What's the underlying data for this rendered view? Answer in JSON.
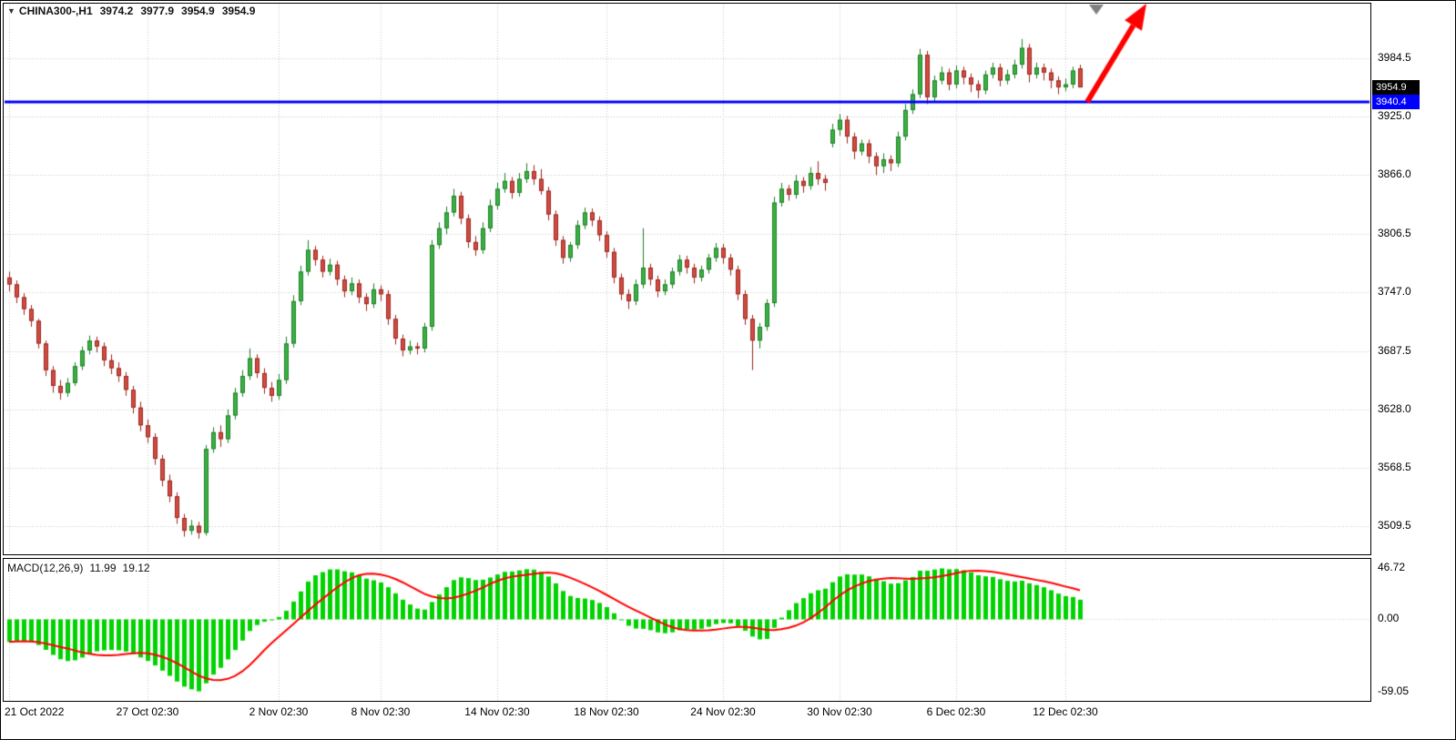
{
  "header": {
    "symbol": "CHINA300-,H1",
    "open": "3974.2",
    "high": "3977.9",
    "low": "3954.9",
    "close": "3954.9"
  },
  "price_tag": {
    "text": "3954.9",
    "value": 3954.9,
    "bg": "#000000",
    "fg": "#ffffff"
  },
  "hline_tag": {
    "text": "3940.4",
    "value": 3940.4,
    "bg": "#0000ff",
    "fg": "#ffffff"
  },
  "macd_panel": {
    "label": "MACD(12,26,9)",
    "main_value": "11.99",
    "signal_value": "19.12",
    "axis_labels": [
      "46.72",
      "0.00",
      "-59.05"
    ]
  },
  "chart_data": {
    "type": "candlestick",
    "symbol": "CHINA300-",
    "timeframe": "H1",
    "ylim": [
      3482,
      4039
    ],
    "grid": true,
    "y_ticks": [
      {
        "v": 3984.5,
        "label": "3984.5"
      },
      {
        "v": 3925.0,
        "label": "3925.0"
      },
      {
        "v": 3866.0,
        "label": "3866.0"
      },
      {
        "v": 3806.5,
        "label": "3806.5"
      },
      {
        "v": 3747.0,
        "label": "3747.0"
      },
      {
        "v": 3687.5,
        "label": "3687.5"
      },
      {
        "v": 3628.0,
        "label": "3628.0"
      },
      {
        "v": 3568.5,
        "label": "3568.5"
      },
      {
        "v": 3509.5,
        "label": "3509.5"
      }
    ],
    "x_ticks": [
      {
        "i": 0,
        "label": "21 Oct 2022"
      },
      {
        "i": 19,
        "label": "27 Oct 02:30"
      },
      {
        "i": 37,
        "label": "2 Nov 02:30"
      },
      {
        "i": 51,
        "label": "8 Nov 02:30"
      },
      {
        "i": 67,
        "label": "14 Nov 02:30"
      },
      {
        "i": 82,
        "label": "18 Nov 02:30"
      },
      {
        "i": 98,
        "label": "24 Nov 02:30"
      },
      {
        "i": 114,
        "label": "30 Nov 02:30"
      },
      {
        "i": 130,
        "label": "6 Dec 02:30"
      },
      {
        "i": 145,
        "label": "12 Dec 02:30"
      }
    ],
    "colors": {
      "up_fill": "#3cb044",
      "up_edge": "#1e7e26",
      "down_fill": "#d14b41",
      "down_edge": "#99271f",
      "grid": "#c4c4c4",
      "hline": "#0000ff",
      "histogram": "#00d300",
      "signal": "#ff0000",
      "arrow": "#ff0000",
      "marker": "#808080"
    },
    "indicator": {
      "name": "MACD",
      "fast": 12,
      "slow": 26,
      "signal": 9,
      "display_main": 11.99,
      "display_signal": 19.12
    },
    "annotations": [
      {
        "type": "hline",
        "value": 3940.4,
        "label": "3940.4",
        "width": 3
      },
      {
        "type": "arrow",
        "from": [
          1193,
          111
        ],
        "to": [
          1258,
          3
        ],
        "width": 6
      },
      {
        "type": "triangle-marker",
        "x": 1203,
        "y": 4,
        "size": 16
      }
    ],
    "candles": [
      [
        3762,
        3768,
        3748,
        3755
      ],
      [
        3755,
        3759,
        3736,
        3742
      ],
      [
        3742,
        3746,
        3724,
        3730
      ],
      [
        3730,
        3734,
        3712,
        3718
      ],
      [
        3718,
        3720,
        3690,
        3695
      ],
      [
        3695,
        3698,
        3662,
        3668
      ],
      [
        3668,
        3672,
        3645,
        3652
      ],
      [
        3652,
        3658,
        3638,
        3645
      ],
      [
        3645,
        3660,
        3641,
        3655
      ],
      [
        3655,
        3676,
        3652,
        3672
      ],
      [
        3672,
        3692,
        3668,
        3688
      ],
      [
        3688,
        3703,
        3684,
        3698
      ],
      [
        3698,
        3702,
        3686,
        3692
      ],
      [
        3692,
        3696,
        3672,
        3678
      ],
      [
        3678,
        3684,
        3664,
        3670
      ],
      [
        3670,
        3676,
        3656,
        3662
      ],
      [
        3662,
        3666,
        3642,
        3648
      ],
      [
        3648,
        3652,
        3624,
        3630
      ],
      [
        3630,
        3636,
        3606,
        3612
      ],
      [
        3612,
        3618,
        3594,
        3600
      ],
      [
        3600,
        3604,
        3572,
        3578
      ],
      [
        3578,
        3582,
        3550,
        3556
      ],
      [
        3556,
        3562,
        3534,
        3540
      ],
      [
        3540,
        3544,
        3512,
        3518
      ],
      [
        3518,
        3522,
        3499,
        3505
      ],
      [
        3505,
        3516,
        3501,
        3510
      ],
      [
        3510,
        3514,
        3497,
        3503
      ],
      [
        3503,
        3592,
        3500,
        3588
      ],
      [
        3588,
        3610,
        3584,
        3605
      ],
      [
        3605,
        3612,
        3590,
        3598
      ],
      [
        3598,
        3628,
        3594,
        3622
      ],
      [
        3622,
        3650,
        3618,
        3645
      ],
      [
        3645,
        3668,
        3641,
        3662
      ],
      [
        3662,
        3690,
        3658,
        3680
      ],
      [
        3680,
        3684,
        3660,
        3665
      ],
      [
        3665,
        3670,
        3644,
        3650
      ],
      [
        3650,
        3656,
        3636,
        3642
      ],
      [
        3642,
        3664,
        3638,
        3658
      ],
      [
        3658,
        3702,
        3654,
        3695
      ],
      [
        3695,
        3744,
        3691,
        3738
      ],
      [
        3738,
        3774,
        3734,
        3768
      ],
      [
        3768,
        3800,
        3764,
        3790
      ],
      [
        3790,
        3794,
        3774,
        3780
      ],
      [
        3780,
        3784,
        3762,
        3768
      ],
      [
        3768,
        3781,
        3764,
        3775
      ],
      [
        3775,
        3779,
        3754,
        3760
      ],
      [
        3760,
        3764,
        3742,
        3748
      ],
      [
        3748,
        3762,
        3744,
        3756
      ],
      [
        3756,
        3760,
        3736,
        3742
      ],
      [
        3742,
        3746,
        3728,
        3735
      ],
      [
        3735,
        3756,
        3731,
        3750
      ],
      [
        3750,
        3754,
        3738,
        3745
      ],
      [
        3745,
        3749,
        3714,
        3720
      ],
      [
        3720,
        3724,
        3694,
        3700
      ],
      [
        3700,
        3704,
        3682,
        3688
      ],
      [
        3688,
        3698,
        3684,
        3692
      ],
      [
        3692,
        3696,
        3684,
        3690
      ],
      [
        3690,
        3716,
        3686,
        3712
      ],
      [
        3712,
        3800,
        3708,
        3795
      ],
      [
        3795,
        3818,
        3791,
        3812
      ],
      [
        3812,
        3834,
        3806,
        3828
      ],
      [
        3828,
        3852,
        3824,
        3845
      ],
      [
        3845,
        3849,
        3816,
        3822
      ],
      [
        3822,
        3826,
        3792,
        3798
      ],
      [
        3798,
        3804,
        3784,
        3790
      ],
      [
        3790,
        3818,
        3786,
        3812
      ],
      [
        3812,
        3841,
        3808,
        3835
      ],
      [
        3835,
        3858,
        3831,
        3852
      ],
      [
        3852,
        3868,
        3848,
        3860
      ],
      [
        3860,
        3864,
        3842,
        3848
      ],
      [
        3848,
        3868,
        3844,
        3862
      ],
      [
        3862,
        3878,
        3858,
        3870
      ],
      [
        3870,
        3876,
        3856,
        3862
      ],
      [
        3862,
        3872,
        3846,
        3850
      ],
      [
        3850,
        3854,
        3820,
        3826
      ],
      [
        3826,
        3830,
        3794,
        3800
      ],
      [
        3800,
        3804,
        3776,
        3782
      ],
      [
        3782,
        3798,
        3778,
        3795
      ],
      [
        3795,
        3820,
        3791,
        3815
      ],
      [
        3815,
        3833,
        3811,
        3828
      ],
      [
        3828,
        3832,
        3814,
        3820
      ],
      [
        3820,
        3824,
        3799,
        3805
      ],
      [
        3805,
        3809,
        3782,
        3788
      ],
      [
        3788,
        3792,
        3756,
        3762
      ],
      [
        3762,
        3766,
        3739,
        3745
      ],
      [
        3745,
        3750,
        3730,
        3738
      ],
      [
        3738,
        3760,
        3734,
        3755
      ],
      [
        3755,
        3812,
        3751,
        3772
      ],
      [
        3772,
        3776,
        3754,
        3760
      ],
      [
        3760,
        3764,
        3742,
        3748
      ],
      [
        3748,
        3760,
        3744,
        3755
      ],
      [
        3755,
        3772,
        3751,
        3768
      ],
      [
        3768,
        3785,
        3764,
        3780
      ],
      [
        3780,
        3784,
        3766,
        3772
      ],
      [
        3772,
        3776,
        3756,
        3762
      ],
      [
        3762,
        3774,
        3758,
        3770
      ],
      [
        3770,
        3786,
        3766,
        3782
      ],
      [
        3782,
        3797,
        3778,
        3792
      ],
      [
        3792,
        3796,
        3776,
        3782
      ],
      [
        3782,
        3786,
        3764,
        3770
      ],
      [
        3770,
        3774,
        3739,
        3745
      ],
      [
        3745,
        3749,
        3714,
        3720
      ],
      [
        3720,
        3724,
        3668,
        3698
      ],
      [
        3698,
        3716,
        3690,
        3712
      ],
      [
        3712,
        3740,
        3708,
        3736
      ],
      [
        3736,
        3844,
        3732,
        3838
      ],
      [
        3838,
        3858,
        3834,
        3852
      ],
      [
        3852,
        3856,
        3840,
        3846
      ],
      [
        3846,
        3866,
        3842,
        3860
      ],
      [
        3860,
        3864,
        3848,
        3855
      ],
      [
        3855,
        3874,
        3851,
        3868
      ],
      [
        3868,
        3880,
        3856,
        3862
      ],
      [
        3862,
        3866,
        3850,
        3858
      ],
      [
        3898,
        3918,
        3894,
        3912
      ],
      [
        3912,
        3928,
        3906,
        3922
      ],
      [
        3922,
        3926,
        3898,
        3905
      ],
      [
        3905,
        3909,
        3882,
        3890
      ],
      [
        3890,
        3902,
        3886,
        3898
      ],
      [
        3898,
        3902,
        3878,
        3885
      ],
      [
        3885,
        3889,
        3866,
        3875
      ],
      [
        3875,
        3888,
        3868,
        3882
      ],
      [
        3882,
        3886,
        3870,
        3878
      ],
      [
        3878,
        3910,
        3874,
        3905
      ],
      [
        3905,
        3938,
        3901,
        3932
      ],
      [
        3932,
        3953,
        3928,
        3948
      ],
      [
        3948,
        3994,
        3944,
        3988
      ],
      [
        3988,
        3992,
        3938,
        3945
      ],
      [
        3945,
        3967,
        3941,
        3962
      ],
      [
        3962,
        3976,
        3958,
        3970
      ],
      [
        3970,
        3974,
        3952,
        3958
      ],
      [
        3958,
        3977,
        3954,
        3972
      ],
      [
        3972,
        3976,
        3958,
        3965
      ],
      [
        3965,
        3969,
        3950,
        3958
      ],
      [
        3958,
        3962,
        3944,
        3952
      ],
      [
        3952,
        3972,
        3948,
        3968
      ],
      [
        3968,
        3980,
        3964,
        3975
      ],
      [
        3975,
        3979,
        3956,
        3962
      ],
      [
        3962,
        3973,
        3958,
        3968
      ],
      [
        3968,
        3983,
        3964,
        3978
      ],
      [
        3978,
        4004,
        3974,
        3995
      ],
      [
        3995,
        3999,
        3960,
        3968
      ],
      [
        3968,
        3980,
        3964,
        3975
      ],
      [
        3975,
        3979,
        3962,
        3970
      ],
      [
        3970,
        3974,
        3954,
        3962
      ],
      [
        3962,
        3966,
        3948,
        3955
      ],
      [
        3955,
        3964,
        3951,
        3958
      ],
      [
        3958,
        3976,
        3954,
        3972
      ],
      [
        3974.2,
        3977.9,
        3954.9,
        3954.9
      ]
    ]
  }
}
